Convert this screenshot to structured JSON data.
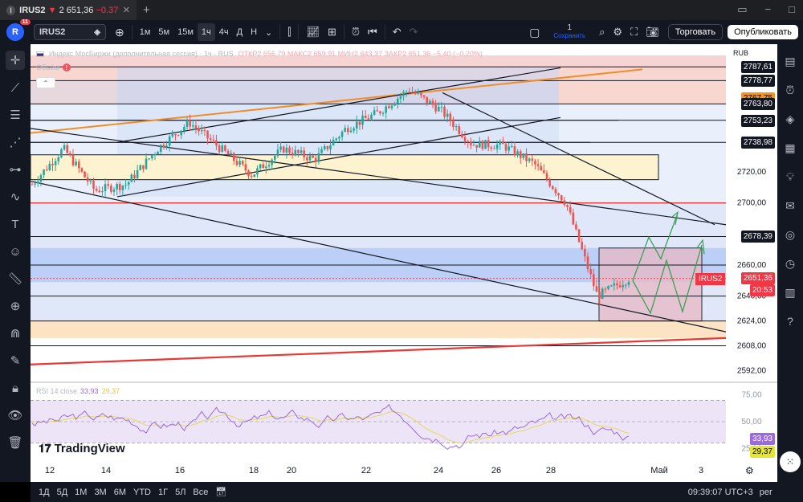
{
  "browser": {
    "tab_icon": "I",
    "tab_symbol": "IRUS2",
    "tab_down": "▼",
    "tab_price": "2 651,36",
    "tab_change": "−0.37%",
    "close_glyph": "✕",
    "new_tab_glyph": "+"
  },
  "toolbar": {
    "avatar_letter": "R",
    "notif_count": "11",
    "symbol": "IRUS2",
    "intervals": [
      "1м",
      "5м",
      "15м",
      "1ч",
      "4ч",
      "Д",
      "Н"
    ],
    "active_interval": "1ч",
    "save_count": "1",
    "save_label": "Сохранить",
    "trade_button": "Торговать",
    "publish_button": "Опубликовать"
  },
  "legend": {
    "title": "Индекс МосБиржи (дополнительная сессия) · 1ч · RUS",
    "ohlc": "ОТКР2 656,79  МАКС2 659,91  МИН2 643,37  ЗАКР2 651,36  −5,40 (−0,20%)",
    "volume": "Объём",
    "warn_glyph": "!",
    "collapse_glyph": "⌃"
  },
  "rsi_legend": {
    "label": "RSI 14 close",
    "value1": "33,93",
    "value2": "29,37"
  },
  "brand": {
    "mark": "𝟏𝟕",
    "name": "TradingView"
  },
  "axis": {
    "currency": "RUB",
    "price_ticks": [
      {
        "text": "2720,00",
        "value": 2720
      },
      {
        "text": "2700,00",
        "value": 2700
      },
      {
        "text": "2660,00",
        "value": 2660
      },
      {
        "text": "2640,00",
        "value": 2640
      },
      {
        "text": "2624,00",
        "value": 2624
      },
      {
        "text": "2608,00",
        "value": 2608
      },
      {
        "text": "2592,00",
        "value": 2592
      }
    ],
    "rsi_ticks": [
      "75,00",
      "50,00",
      "25,00"
    ],
    "date_ticks": [
      "12",
      "14",
      "16",
      "18",
      "20",
      "22",
      "24",
      "26",
      "28",
      "Май",
      "3"
    ]
  },
  "price_labels": [
    {
      "text": "2787,61",
      "value": 2787.61,
      "style": "black"
    },
    {
      "text": "2778,77",
      "value": 2778.77,
      "style": "black"
    },
    {
      "text": "2767,75",
      "value": 2767.75,
      "style": "orange"
    },
    {
      "text": "2763,80",
      "value": 2763.8,
      "style": "black"
    },
    {
      "text": "2753,23",
      "value": 2753.23,
      "style": "black"
    },
    {
      "text": "2738,98",
      "value": 2738.98,
      "style": "black"
    },
    {
      "text": "2678,39",
      "value": 2678.39,
      "style": "black"
    }
  ],
  "current": {
    "symbol_tag": "IRUS2",
    "price": "2651,36",
    "countdown": "20:53",
    "price_value": 2651.36
  },
  "rsi_labels": {
    "purple": "33,93",
    "yellow": "29,37"
  },
  "bottom": {
    "ranges": [
      "1Д",
      "5Д",
      "1М",
      "3М",
      "6М",
      "YTD",
      "1Г",
      "5Л",
      "Все"
    ],
    "time": "09:39:07 UTC+3",
    "extra": "рег"
  },
  "chart_data": {
    "type": "candlestick",
    "instrument": "IRUS2",
    "interval": "1ч",
    "ylim": [
      2585,
      2795
    ],
    "last_close": 2651.36,
    "horizontal_levels": [
      2787.61,
      2778.77,
      2763.8,
      2753.23,
      2738.98,
      2700.0,
      2678.39,
      2660.0,
      2640.0,
      2624.0,
      2608.0
    ],
    "close_path": [
      {
        "x": "11",
        "close": 2712
      },
      {
        "x": "12",
        "close": 2735
      },
      {
        "x": "13",
        "close": 2708
      },
      {
        "x": "14",
        "close": 2712
      },
      {
        "x": "15",
        "close": 2735
      },
      {
        "x": "16",
        "close": 2752
      },
      {
        "x": "17",
        "close": 2735
      },
      {
        "x": "18",
        "close": 2718
      },
      {
        "x": "19",
        "close": 2735
      },
      {
        "x": "20",
        "close": 2728
      },
      {
        "x": "21",
        "close": 2748
      },
      {
        "x": "22",
        "close": 2758
      },
      {
        "x": "23",
        "close": 2773
      },
      {
        "x": "24",
        "close": 2760
      },
      {
        "x": "25",
        "close": 2738
      },
      {
        "x": "26",
        "close": 2737
      },
      {
        "x": "27",
        "close": 2725
      },
      {
        "x": "28",
        "close": 2700
      },
      {
        "x": "29",
        "close": 2640
      },
      {
        "x": "30",
        "close": 2651.36
      }
    ],
    "rsi": {
      "period": 14,
      "source": "close",
      "value": 33.93,
      "ma": 29.37,
      "ylim": [
        20,
        80
      ],
      "bands": [
        70,
        30
      ]
    }
  }
}
